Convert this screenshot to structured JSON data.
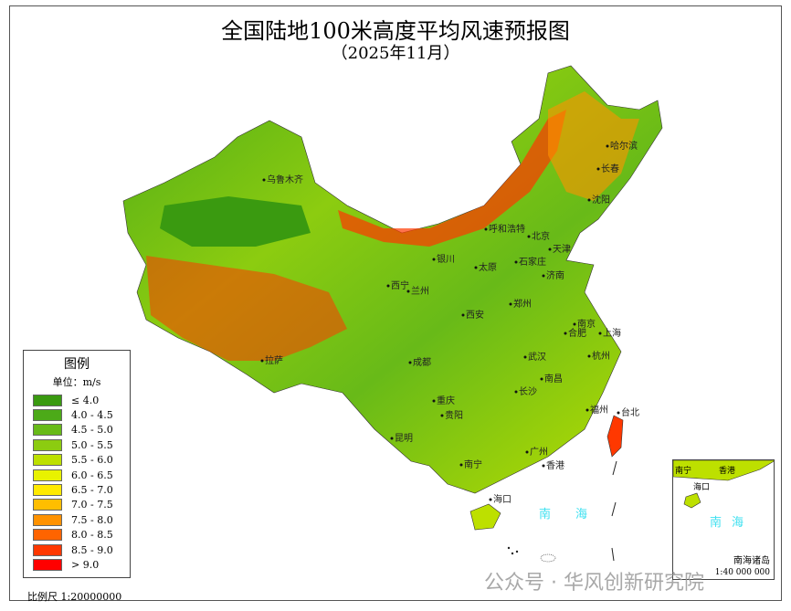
{
  "title": "全国陆地100米高度平均风速预报图",
  "subtitle": "（2025年11月）",
  "legend": {
    "title": "图例",
    "unit": "单位：m/s",
    "items": [
      {
        "label": "≤ 4.0",
        "color": "#3a9a10"
      },
      {
        "label": "4.0 - 4.5",
        "color": "#4caa18"
      },
      {
        "label": "4.5 - 5.0",
        "color": "#68ba18"
      },
      {
        "label": "5.0 - 5.5",
        "color": "#8ccc10"
      },
      {
        "label": "5.5 - 6.0",
        "color": "#bde000"
      },
      {
        "label": "6.0 - 6.5",
        "color": "#e8f200"
      },
      {
        "label": "6.5 - 7.0",
        "color": "#ffea00"
      },
      {
        "label": "7.0 - 7.5",
        "color": "#ffbe00"
      },
      {
        "label": "7.5 - 8.0",
        "color": "#ff9200"
      },
      {
        "label": "8.0 - 8.5",
        "color": "#ff6400"
      },
      {
        "label": "8.5 - 9.0",
        "color": "#ff3800"
      },
      {
        "label": "> 9.0",
        "color": "#ff0000"
      }
    ]
  },
  "scale": "比例尺 1:20000000",
  "sea_label": [
    "南",
    "海"
  ],
  "cities": [
    "乌鲁木齐",
    "拉萨",
    "西宁",
    "兰州",
    "银川",
    "呼和浩特",
    "北京",
    "天津",
    "石家庄",
    "太原",
    "济南",
    "郑州",
    "西安",
    "成都",
    "重庆",
    "贵阳",
    "昆明",
    "南宁",
    "广州",
    "香港",
    "海口",
    "长沙",
    "武汉",
    "南昌",
    "合肥",
    "南京",
    "上海",
    "杭州",
    "福州",
    "台北",
    "哈尔滨",
    "长春",
    "沈阳"
  ],
  "inset": {
    "title": "南海诸岛",
    "scale": "1:40 000 000",
    "cities": [
      "南宁",
      "香港",
      "海口"
    ]
  },
  "watermark": "公众号 · 华风创新研究院"
}
